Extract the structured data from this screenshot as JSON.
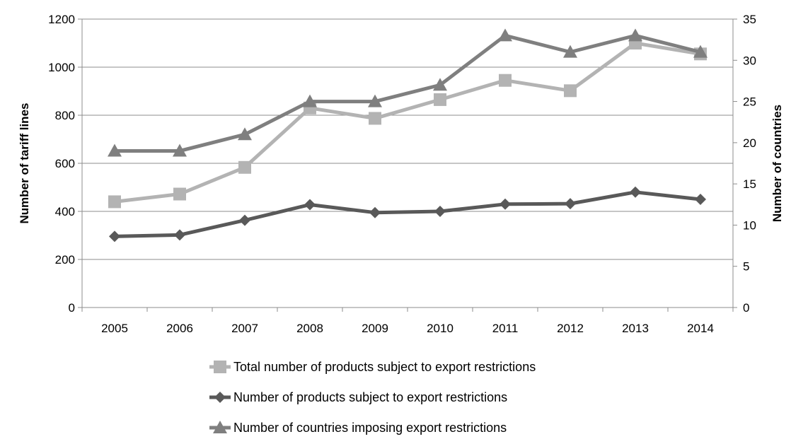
{
  "chart_data": {
    "type": "line",
    "title": "",
    "x": [
      "2005",
      "2006",
      "2007",
      "2008",
      "2009",
      "2010",
      "2011",
      "2012",
      "2013",
      "2014"
    ],
    "ylabel_left": "Number of tariff lines",
    "ylabel_right": "Number of countries",
    "ylim_left": [
      0,
      1200
    ],
    "yticks_left": [
      0,
      200,
      400,
      600,
      800,
      1000,
      1200
    ],
    "ylim_right": [
      0,
      35
    ],
    "yticks_right": [
      0,
      5,
      10,
      15,
      20,
      25,
      30,
      35
    ],
    "grid": "horizontal",
    "legend_position": "bottom",
    "series": [
      {
        "name": "Total number of products subject to export restrictions",
        "axis": "left",
        "marker": "square",
        "color": "#b3b3b3",
        "values": [
          440,
          472,
          583,
          830,
          787,
          865,
          945,
          902,
          1100,
          1055
        ]
      },
      {
        "name": "Number of products subject to export restrictions",
        "axis": "left",
        "marker": "diamond",
        "color": "#595959",
        "values": [
          296,
          302,
          363,
          428,
          395,
          400,
          430,
          432,
          480,
          450
        ]
      },
      {
        "name": "Number of countries imposing export restrictions",
        "axis": "right",
        "marker": "triangle",
        "color": "#7f7f7f",
        "values": [
          19,
          19,
          21,
          25,
          25,
          27,
          33,
          31,
          33,
          31
        ]
      }
    ]
  }
}
